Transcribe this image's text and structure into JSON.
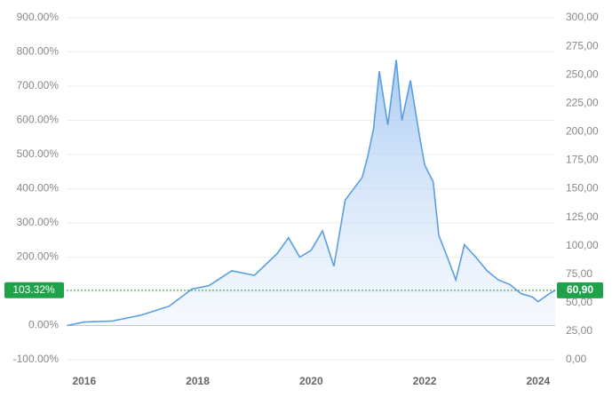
{
  "chart_data": {
    "type": "area",
    "x": [
      2015.7,
      2016.0,
      2016.5,
      2017.0,
      2017.5,
      2017.9,
      2018.2,
      2018.6,
      2019.0,
      2019.4,
      2019.6,
      2019.8,
      2020.0,
      2020.2,
      2020.4,
      2020.6,
      2020.9,
      2021.0,
      2021.1,
      2021.2,
      2021.35,
      2021.5,
      2021.6,
      2021.75,
      2021.9,
      2022.0,
      2022.15,
      2022.25,
      2022.4,
      2022.55,
      2022.7,
      2022.9,
      2023.1,
      2023.3,
      2023.5,
      2023.7,
      2023.9,
      2024.0,
      2024.2,
      2024.3
    ],
    "series": [
      {
        "color": "#5a9ee2",
        "axis": "y2",
        "values": [
          30,
          33,
          34,
          39,
          47,
          62,
          65,
          78,
          74,
          93,
          107,
          90,
          96,
          113,
          82,
          140,
          160,
          179,
          203,
          253,
          206,
          263,
          210,
          245,
          199,
          171,
          156,
          109,
          90,
          70,
          101,
          90,
          78,
          70,
          66,
          58,
          55,
          51,
          58,
          60.9
        ]
      }
    ],
    "xlim": [
      2015.69,
      2024.3
    ],
    "xticks": [
      2016,
      2018,
      2020,
      2022,
      2024
    ],
    "ylim": [
      -100,
      900
    ],
    "yticks": [
      {
        "value": -100,
        "label": "-100.00%"
      },
      {
        "value": 0,
        "label": "0.00%"
      },
      {
        "value": 100,
        "label": "100.00%"
      },
      {
        "value": 200,
        "label": "200.00%"
      },
      {
        "value": 300,
        "label": "300.00%"
      },
      {
        "value": 400,
        "label": "400.00%"
      },
      {
        "value": 500,
        "label": "500.00%"
      },
      {
        "value": 600,
        "label": "600.00%"
      },
      {
        "value": 700,
        "label": "700.00%"
      },
      {
        "value": 800,
        "label": "800.00%"
      },
      {
        "value": 900,
        "label": "900.00%"
      }
    ],
    "y2lim": [
      0,
      300
    ],
    "y2ticks": [
      {
        "value": 0,
        "label": "0,00"
      },
      {
        "value": 25,
        "label": "25,00"
      },
      {
        "value": 50,
        "label": "50,00"
      },
      {
        "value": 75,
        "label": "75,00"
      },
      {
        "value": 100,
        "label": "100,00"
      },
      {
        "value": 125,
        "label": "125,00"
      },
      {
        "value": 150,
        "label": "150,00"
      },
      {
        "value": 175,
        "label": "175,00"
      },
      {
        "value": 200,
        "label": "200,00"
      },
      {
        "value": 225,
        "label": "225,00"
      },
      {
        "value": 250,
        "label": "250,00"
      },
      {
        "value": 275,
        "label": "275,00"
      },
      {
        "value": 300,
        "label": "300,00"
      }
    ],
    "grid": true,
    "last_percent": {
      "value": 103.32,
      "label": "103.32%"
    },
    "last_price": {
      "value": 60.9,
      "label": "60,90"
    },
    "marker_color": "#1ea34a"
  }
}
